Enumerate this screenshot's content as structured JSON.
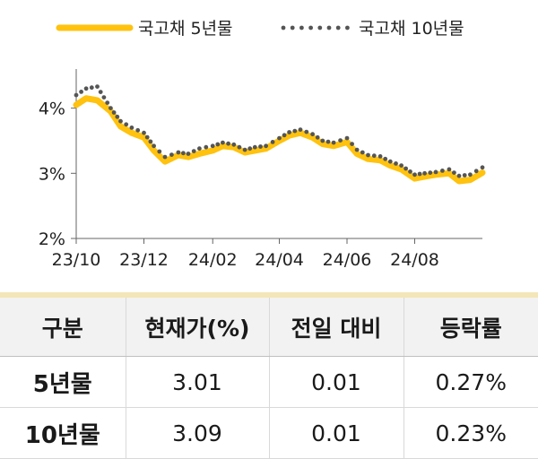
{
  "chart_data": {
    "type": "line",
    "x": [
      "2023-10-01",
      "2023-10-10",
      "2023-10-20",
      "2023-11-01",
      "2023-11-10",
      "2023-11-20",
      "2023-12-01",
      "2023-12-10",
      "2023-12-20",
      "2024-01-01",
      "2024-01-10",
      "2024-01-20",
      "2024-02-01",
      "2024-02-10",
      "2024-02-20",
      "2024-03-01",
      "2024-03-10",
      "2024-03-20",
      "2024-04-01",
      "2024-04-10",
      "2024-04-20",
      "2024-05-01",
      "2024-05-10",
      "2024-05-20",
      "2024-06-01",
      "2024-06-10",
      "2024-06-20",
      "2024-07-01",
      "2024-07-10",
      "2024-07-20",
      "2024-08-01",
      "2024-08-10",
      "2024-08-20",
      "2024-09-01",
      "2024-09-10",
      "2024-09-20",
      "2024-10-01"
    ],
    "series": [
      {
        "name": "국고채 5년물",
        "color": "#FFC20E",
        "values": [
          4.05,
          4.15,
          4.12,
          3.95,
          3.72,
          3.62,
          3.55,
          3.35,
          3.18,
          3.28,
          3.25,
          3.3,
          3.35,
          3.42,
          3.4,
          3.32,
          3.35,
          3.38,
          3.5,
          3.58,
          3.62,
          3.55,
          3.45,
          3.42,
          3.48,
          3.3,
          3.22,
          3.2,
          3.12,
          3.06,
          2.92,
          2.95,
          2.98,
          3.0,
          2.88,
          2.9,
          3.01
        ]
      },
      {
        "name": "국고채 10년물",
        "color": "#555555",
        "values": [
          4.2,
          4.3,
          4.33,
          4.0,
          3.8,
          3.7,
          3.62,
          3.42,
          3.25,
          3.32,
          3.3,
          3.38,
          3.42,
          3.47,
          3.44,
          3.36,
          3.4,
          3.42,
          3.54,
          3.63,
          3.67,
          3.6,
          3.5,
          3.47,
          3.54,
          3.36,
          3.28,
          3.26,
          3.18,
          3.12,
          2.98,
          3.0,
          3.02,
          3.06,
          2.96,
          2.98,
          3.09
        ]
      }
    ],
    "yticks": [
      "4%",
      "3%",
      "2%"
    ],
    "ytick_values": [
      4,
      3,
      2
    ],
    "xticks": [
      "23/10",
      "23/12",
      "24/02",
      "24/04",
      "24/06",
      "24/08"
    ],
    "xtick_dates": [
      "2023-10-01",
      "2023-12-01",
      "2024-02-01",
      "2024-04-01",
      "2024-06-01",
      "2024-08-01"
    ],
    "ylim": [
      2,
      4.6
    ],
    "xlim": [
      "2023-10-01",
      "2024-10-01"
    ],
    "legend_position": "top",
    "grid": false
  },
  "table": {
    "headers": [
      "구분",
      "현재가(%)",
      "전일 대비",
      "등락률"
    ],
    "rows": [
      [
        "5년물",
        "3.01",
        "0.01",
        "0.27%"
      ],
      [
        "10년물",
        "3.09",
        "0.01",
        "0.23%"
      ]
    ]
  }
}
